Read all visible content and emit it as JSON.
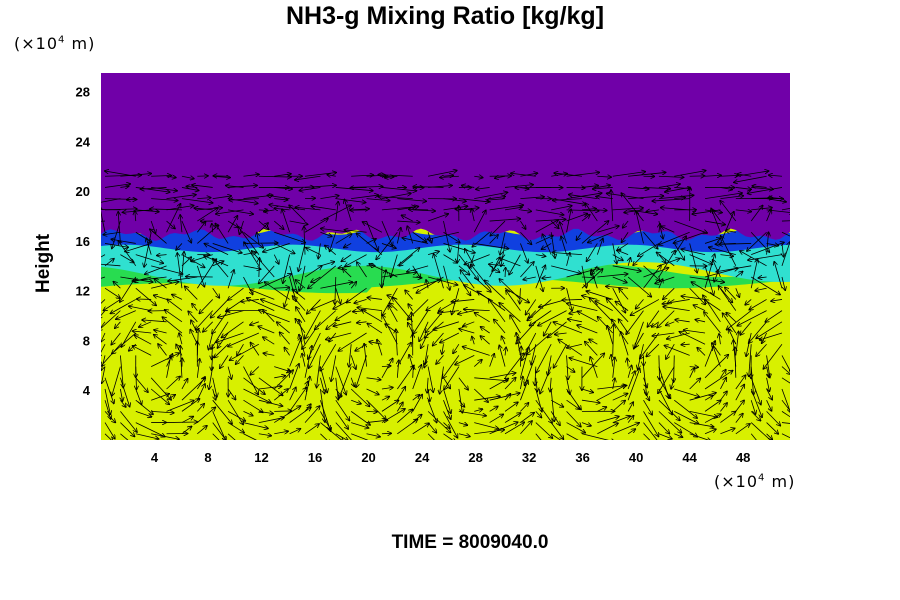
{
  "chart_data": {
    "type": "heatmap",
    "title": "NH3-g Mixing Ratio [kg/kg]",
    "xlabel": "",
    "ylabel": "Height",
    "x_unit_prefix": "(×10",
    "x_unit_exp": "4",
    "x_unit_suffix": " m)",
    "y_unit_prefix": "(×10",
    "y_unit_exp": "4",
    "y_unit_suffix": " m)",
    "xlim": [
      0,
      51.5
    ],
    "ylim": [
      0,
      29.5
    ],
    "x_ticks": [
      4,
      8,
      12,
      16,
      20,
      24,
      28,
      32,
      36,
      40,
      44,
      48
    ],
    "y_ticks": [
      4,
      8,
      12,
      16,
      20,
      24,
      28
    ],
    "layers": [
      {
        "name": "upper",
        "from": 16.5,
        "to": 29.5,
        "color": "#7000a8"
      },
      {
        "name": "interface",
        "from": 15.5,
        "to": 16.8,
        "color": "#1040e0"
      },
      {
        "name": "cloud",
        "from": 12.0,
        "to": 15.8,
        "color": "#30e0d0"
      },
      {
        "name": "transition",
        "from": 11.8,
        "to": 13.5,
        "color": "#28dc50"
      },
      {
        "name": "lower",
        "from": 0,
        "to": 12.0,
        "color": "#d8f000"
      }
    ],
    "overlay": "wind vectors",
    "footer": "TIME = 8009040.0"
  }
}
